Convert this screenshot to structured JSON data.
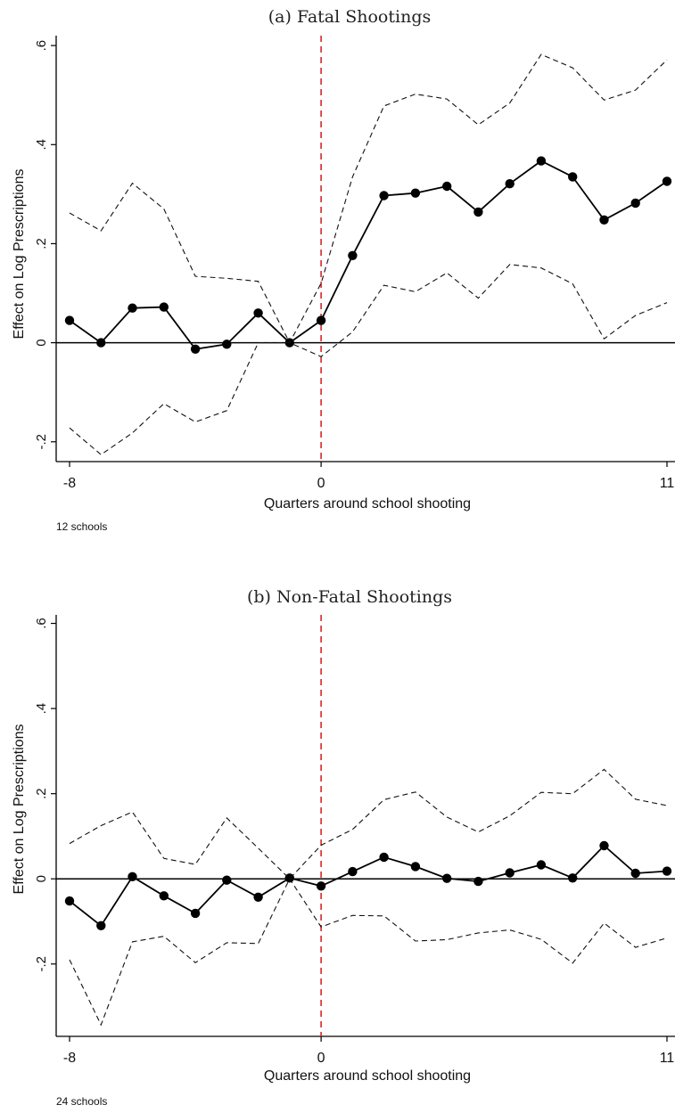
{
  "chart_data": [
    {
      "type": "line",
      "title": "(a) Fatal Shootings",
      "xlabel": "Quarters around school shooting",
      "ylabel": "Effect on Log Prescriptions",
      "note": "12 schools",
      "xlim": [
        -8,
        11
      ],
      "ylim": [
        -0.24,
        0.62
      ],
      "xticks": [
        -8,
        0,
        11
      ],
      "xtick_labels": [
        "-8",
        "0",
        "11"
      ],
      "yticks": [
        -0.2,
        0,
        0.2,
        0.4,
        0.6
      ],
      "ytick_labels": [
        "-.2",
        "0",
        ".2",
        ".4",
        ".6"
      ],
      "vline_x": 0,
      "hline_y": 0,
      "grid": false,
      "x": [
        -8,
        -7,
        -6,
        -5,
        -4,
        -3,
        -2,
        -1,
        0,
        1,
        2,
        3,
        4,
        5,
        6,
        7,
        8,
        9,
        10,
        11
      ],
      "series": [
        {
          "role": "estimate",
          "style": "solid-markers",
          "values": [
            0.045,
            0.0,
            0.07,
            0.072,
            -0.013,
            -0.003,
            0.06,
            0.0,
            0.045,
            0.176,
            0.297,
            0.302,
            0.316,
            0.264,
            0.321,
            0.367,
            0.335,
            0.248,
            0.282,
            0.326
          ]
        },
        {
          "role": "upper-ci",
          "style": "dashed",
          "values": [
            0.262,
            0.226,
            0.322,
            0.27,
            0.134,
            0.13,
            0.124,
            0.0,
            0.12,
            0.335,
            0.478,
            0.502,
            0.492,
            0.44,
            0.484,
            0.582,
            0.555,
            0.49,
            0.51,
            0.571
          ]
        },
        {
          "role": "lower-ci",
          "style": "dashed",
          "values": [
            -0.172,
            -0.226,
            -0.182,
            -0.123,
            -0.16,
            -0.137,
            0.0,
            0.0,
            -0.028,
            0.022,
            0.116,
            0.103,
            0.141,
            0.09,
            0.158,
            0.151,
            0.119,
            0.008,
            0.055,
            0.081
          ]
        }
      ]
    },
    {
      "type": "line",
      "title": "(b) Non-Fatal Shootings",
      "xlabel": "Quarters around school shooting",
      "ylabel": "Effect on Log Prescriptions",
      "note": "24 schools",
      "xlim": [
        -8,
        11
      ],
      "ylim": [
        -0.37,
        0.62
      ],
      "xticks": [
        -8,
        0,
        11
      ],
      "xtick_labels": [
        "-8",
        "0",
        "11"
      ],
      "yticks": [
        -0.2,
        0,
        0.2,
        0.4,
        0.6
      ],
      "ytick_labels": [
        "-.2",
        "0",
        ".2",
        ".4",
        ".6"
      ],
      "vline_x": 0,
      "hline_y": 0,
      "grid": false,
      "x": [
        -8,
        -7,
        -6,
        -5,
        -4,
        -3,
        -2,
        -1,
        0,
        1,
        2,
        3,
        4,
        5,
        6,
        7,
        8,
        9,
        10,
        11
      ],
      "series": [
        {
          "role": "estimate",
          "style": "solid-markers",
          "values": [
            -0.052,
            -0.11,
            0.005,
            -0.04,
            -0.081,
            -0.003,
            -0.043,
            0.002,
            -0.017,
            0.017,
            0.051,
            0.029,
            0.001,
            -0.006,
            0.014,
            0.033,
            0.002,
            0.078,
            0.013,
            0.018
          ]
        },
        {
          "role": "upper-ci",
          "style": "dashed",
          "values": [
            0.083,
            0.125,
            0.157,
            0.048,
            0.034,
            0.143,
            0.072,
            0.0,
            0.079,
            0.116,
            0.186,
            0.204,
            0.145,
            0.11,
            0.148,
            0.203,
            0.2,
            0.257,
            0.187,
            0.172
          ]
        },
        {
          "role": "lower-ci",
          "style": "dashed",
          "values": [
            -0.19,
            -0.343,
            -0.148,
            -0.135,
            -0.197,
            -0.15,
            -0.152,
            0.0,
            -0.113,
            -0.086,
            -0.087,
            -0.146,
            -0.143,
            -0.127,
            -0.12,
            -0.142,
            -0.198,
            -0.104,
            -0.161,
            -0.139
          ]
        }
      ]
    }
  ]
}
